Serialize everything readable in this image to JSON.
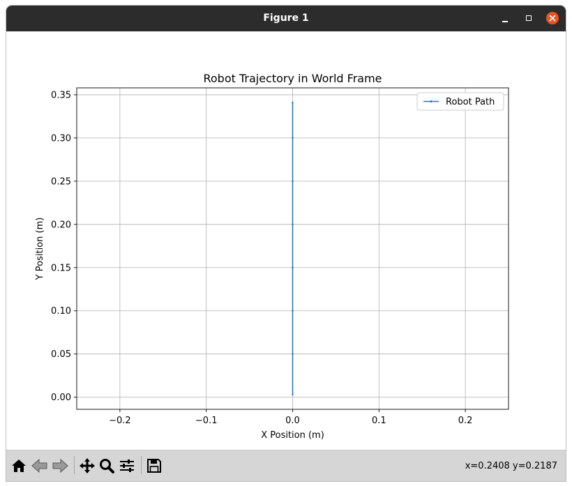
{
  "window": {
    "title": "Figure 1"
  },
  "toolbar": {
    "tools": [
      "home-icon",
      "back-icon",
      "forward-icon",
      "pan-icon",
      "zoom-icon",
      "configure-icon",
      "save-icon"
    ],
    "coords": "x=0.2408 y=0.2187"
  },
  "chart_data": {
    "type": "line",
    "title": "Robot Trajectory in World Frame",
    "xlabel": "X Position (m)",
    "ylabel": "Y Position (m)",
    "xlim": [
      -0.25,
      0.25
    ],
    "ylim": [
      -0.014,
      0.358
    ],
    "xticks": [
      -0.2,
      -0.1,
      0.0,
      0.1,
      0.2
    ],
    "xtick_labels": [
      "−0.2",
      "−0.1",
      "0.0",
      "0.1",
      "0.2"
    ],
    "yticks": [
      0.0,
      0.05,
      0.1,
      0.15,
      0.2,
      0.25,
      0.3,
      0.35
    ],
    "ytick_labels": [
      "0.00",
      "0.05",
      "0.10",
      "0.15",
      "0.20",
      "0.25",
      "0.30",
      "0.35"
    ],
    "grid": true,
    "legend_position": "top-right",
    "series": [
      {
        "name": "Robot Path",
        "color": "#1f77b4",
        "x": [
          0.0,
          0.0,
          0.0,
          0.0,
          0.0,
          0.0,
          0.0,
          0.0
        ],
        "y": [
          0.003,
          0.05,
          0.1,
          0.15,
          0.2,
          0.25,
          0.3,
          0.341
        ]
      }
    ]
  }
}
